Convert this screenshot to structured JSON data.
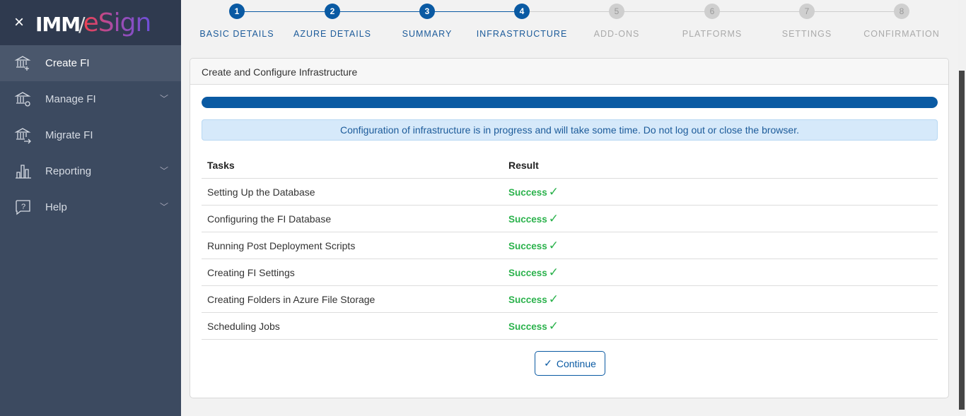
{
  "sidebar": {
    "logo": {
      "left": "IMM",
      "right": "eSign"
    },
    "items": [
      {
        "label": "Create FI",
        "icon": "bank-plus-icon",
        "active": true,
        "expandable": false
      },
      {
        "label": "Manage FI",
        "icon": "bank-gear-icon",
        "expandable": true
      },
      {
        "label": "Migrate FI",
        "icon": "bank-arrow-icon",
        "expandable": false
      },
      {
        "label": "Reporting",
        "icon": "bar-chart-icon",
        "expandable": true
      },
      {
        "label": "Help",
        "icon": "help-bubble-icon",
        "expandable": true
      }
    ]
  },
  "stepper": {
    "current": 4,
    "steps": [
      {
        "num": "1",
        "label": "BASIC DETAILS"
      },
      {
        "num": "2",
        "label": "AZURE DETAILS"
      },
      {
        "num": "3",
        "label": "SUMMARY"
      },
      {
        "num": "4",
        "label": "INFRASTRUCTURE"
      },
      {
        "num": "5",
        "label": "ADD-ONS"
      },
      {
        "num": "6",
        "label": "PLATFORMS"
      },
      {
        "num": "7",
        "label": "SETTINGS"
      },
      {
        "num": "8",
        "label": "CONFIRMATION"
      }
    ]
  },
  "card": {
    "title": "Create and Configure Infrastructure",
    "progress_percent": 100,
    "alert": "Configuration of infrastructure is in progress and will take some time. Do not log out or close the browser.",
    "table": {
      "headers": [
        "Tasks",
        "Result"
      ],
      "rows": [
        {
          "task": "Setting Up the Database",
          "result": "Success"
        },
        {
          "task": "Configuring the FI Database",
          "result": "Success"
        },
        {
          "task": "Running Post Deployment Scripts",
          "result": "Success"
        },
        {
          "task": "Creating FI Settings",
          "result": "Success"
        },
        {
          "task": "Creating Folders in Azure File Storage",
          "result": "Success"
        },
        {
          "task": "Scheduling Jobs",
          "result": "Success"
        }
      ]
    },
    "continue_label": "Continue"
  },
  "colors": {
    "primary": "#0a5aa3",
    "success": "#2bb24c",
    "sidebar": "#3c4a60"
  }
}
